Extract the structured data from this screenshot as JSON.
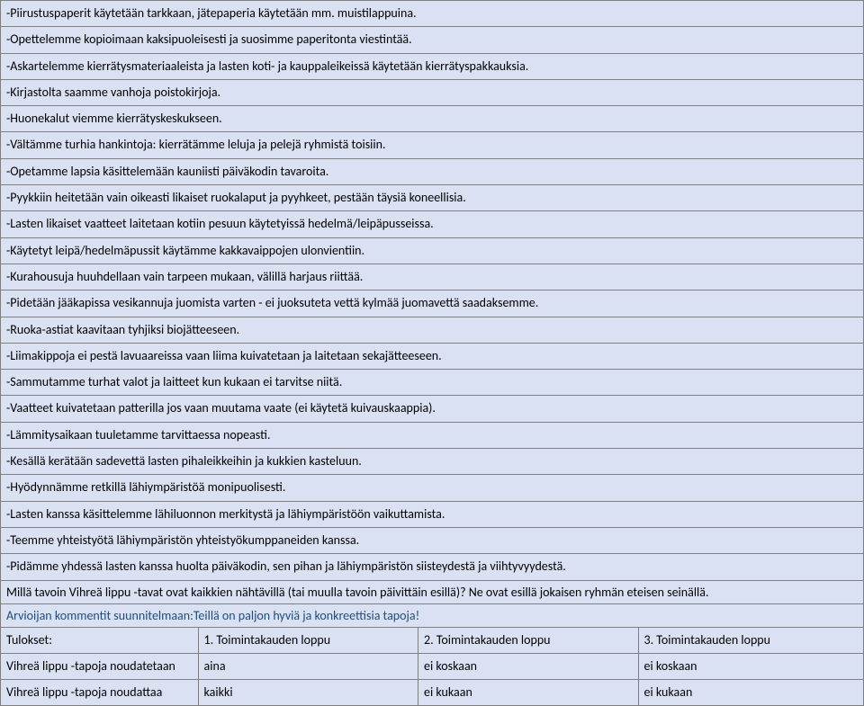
{
  "colors": {
    "row_bg": "#d9e1f2",
    "header_bg": "#bdd7ee",
    "border": "#7f7f7f",
    "comment_text": "#1f4e79",
    "text": "#000000"
  },
  "font": {
    "family": "Calibri",
    "size": 14
  },
  "bullets": [
    "-Piirustuspaperit käytetään tarkkaan, jätepaperia käytetään mm. muistilappuina.",
    "-Opettelemme kopioimaan kaksipuoleisesti ja suosimme paperitonta viestintää.",
    "-Askartelemme kierrätysmateriaaleista ja lasten koti- ja kauppaleikeissä käytetään kierrätyspakkauksia.",
    "-Kirjastolta saamme vanhoja poistokirjoja.",
    "-Huonekalut viemme kierrätyskeskukseen.",
    "-Vältämme turhia hankintoja: kierrätämme leluja ja pelejä ryhmistä toisiin.",
    "-Opetamme lapsia käsittelemään kauniisti päiväkodin tavaroita.",
    "-Pyykkiin heitetään vain oikeasti likaiset ruokalaput ja pyyhkeet, pestään täysiä koneellisia.",
    "-Lasten likaiset vaatteet laitetaan kotiin pesuun käytetyissä hedelmä/leipäpusseissa.",
    "-Käytetyt leipä/hedelmäpussit käytämme kakkavaippojen ulonvientiin.",
    "-Kurahousuja huuhdellaan vain tarpeen mukaan, välillä harjaus riittää.",
    "-Pidetään jääkapissa vesikannuja juomista varten - ei juoksuteta vettä kylmää juomavettä saadaksemme.",
    "-Ruoka-astiat kaavitaan tyhjiksi biojätteeseen.",
    "-Liimakippoja ei pestä lavuaareissa vaan liima kuivatetaan ja laitetaan sekajätteeseen.",
    "-Sammutamme turhat valot ja laitteet kun kukaan ei tarvitse niitä.",
    "-Vaatteet kuivatetaan patterilla jos vaan muutama vaate (ei käytetä kuivauskaappia).",
    "-Lämmitysaikaan tuuletamme tarvittaessa nopeasti.",
    "-Kesällä kerätään sadevettä lasten pihaleikkeihin ja kukkien kasteluun.",
    "-Hyödynnämme retkillä lähiympäristöä monipuolisesti.",
    "-Lasten kanssa käsittelemme lähiluonnon merkitystä ja lähiympäristöön vaikuttamista.",
    "-Teemme yhteistyötä lähiympäristön yhteistyökumppaneiden kanssa.",
    "-Pidämme yhdessä lasten kanssa huolta päiväkodin, sen pihan ja lähiympäristön siisteydestä ja viihtyvyydestä."
  ],
  "question": {
    "prompt": "Millä tavoin Vihreä lippu -tavat ovat kaikkien nähtävillä (tai muulla tavoin päivittäin esillä)?",
    "answer": "Ne ovat esillä jokaisen ryhmän eteisen seinällä."
  },
  "comment": {
    "label": "Arvioijan kommentit suunnitelmaan:",
    "text": "Teillä on paljon hyviä ja konkreettisia tapoja!"
  },
  "table": {
    "headers": [
      "Tulokset:",
      "1. Toimintakauden loppu",
      "2. Toimintakauden loppu",
      "3. Toimintakauden loppu"
    ],
    "rows": [
      [
        "Vihreä lippu -tapoja noudatetaan",
        "aina",
        "ei koskaan",
        "ei koskaan"
      ],
      [
        "Vihreä lippu -tapoja noudattaa",
        "kaikki",
        "ei kukaan",
        "ei kukaan"
      ]
    ]
  }
}
